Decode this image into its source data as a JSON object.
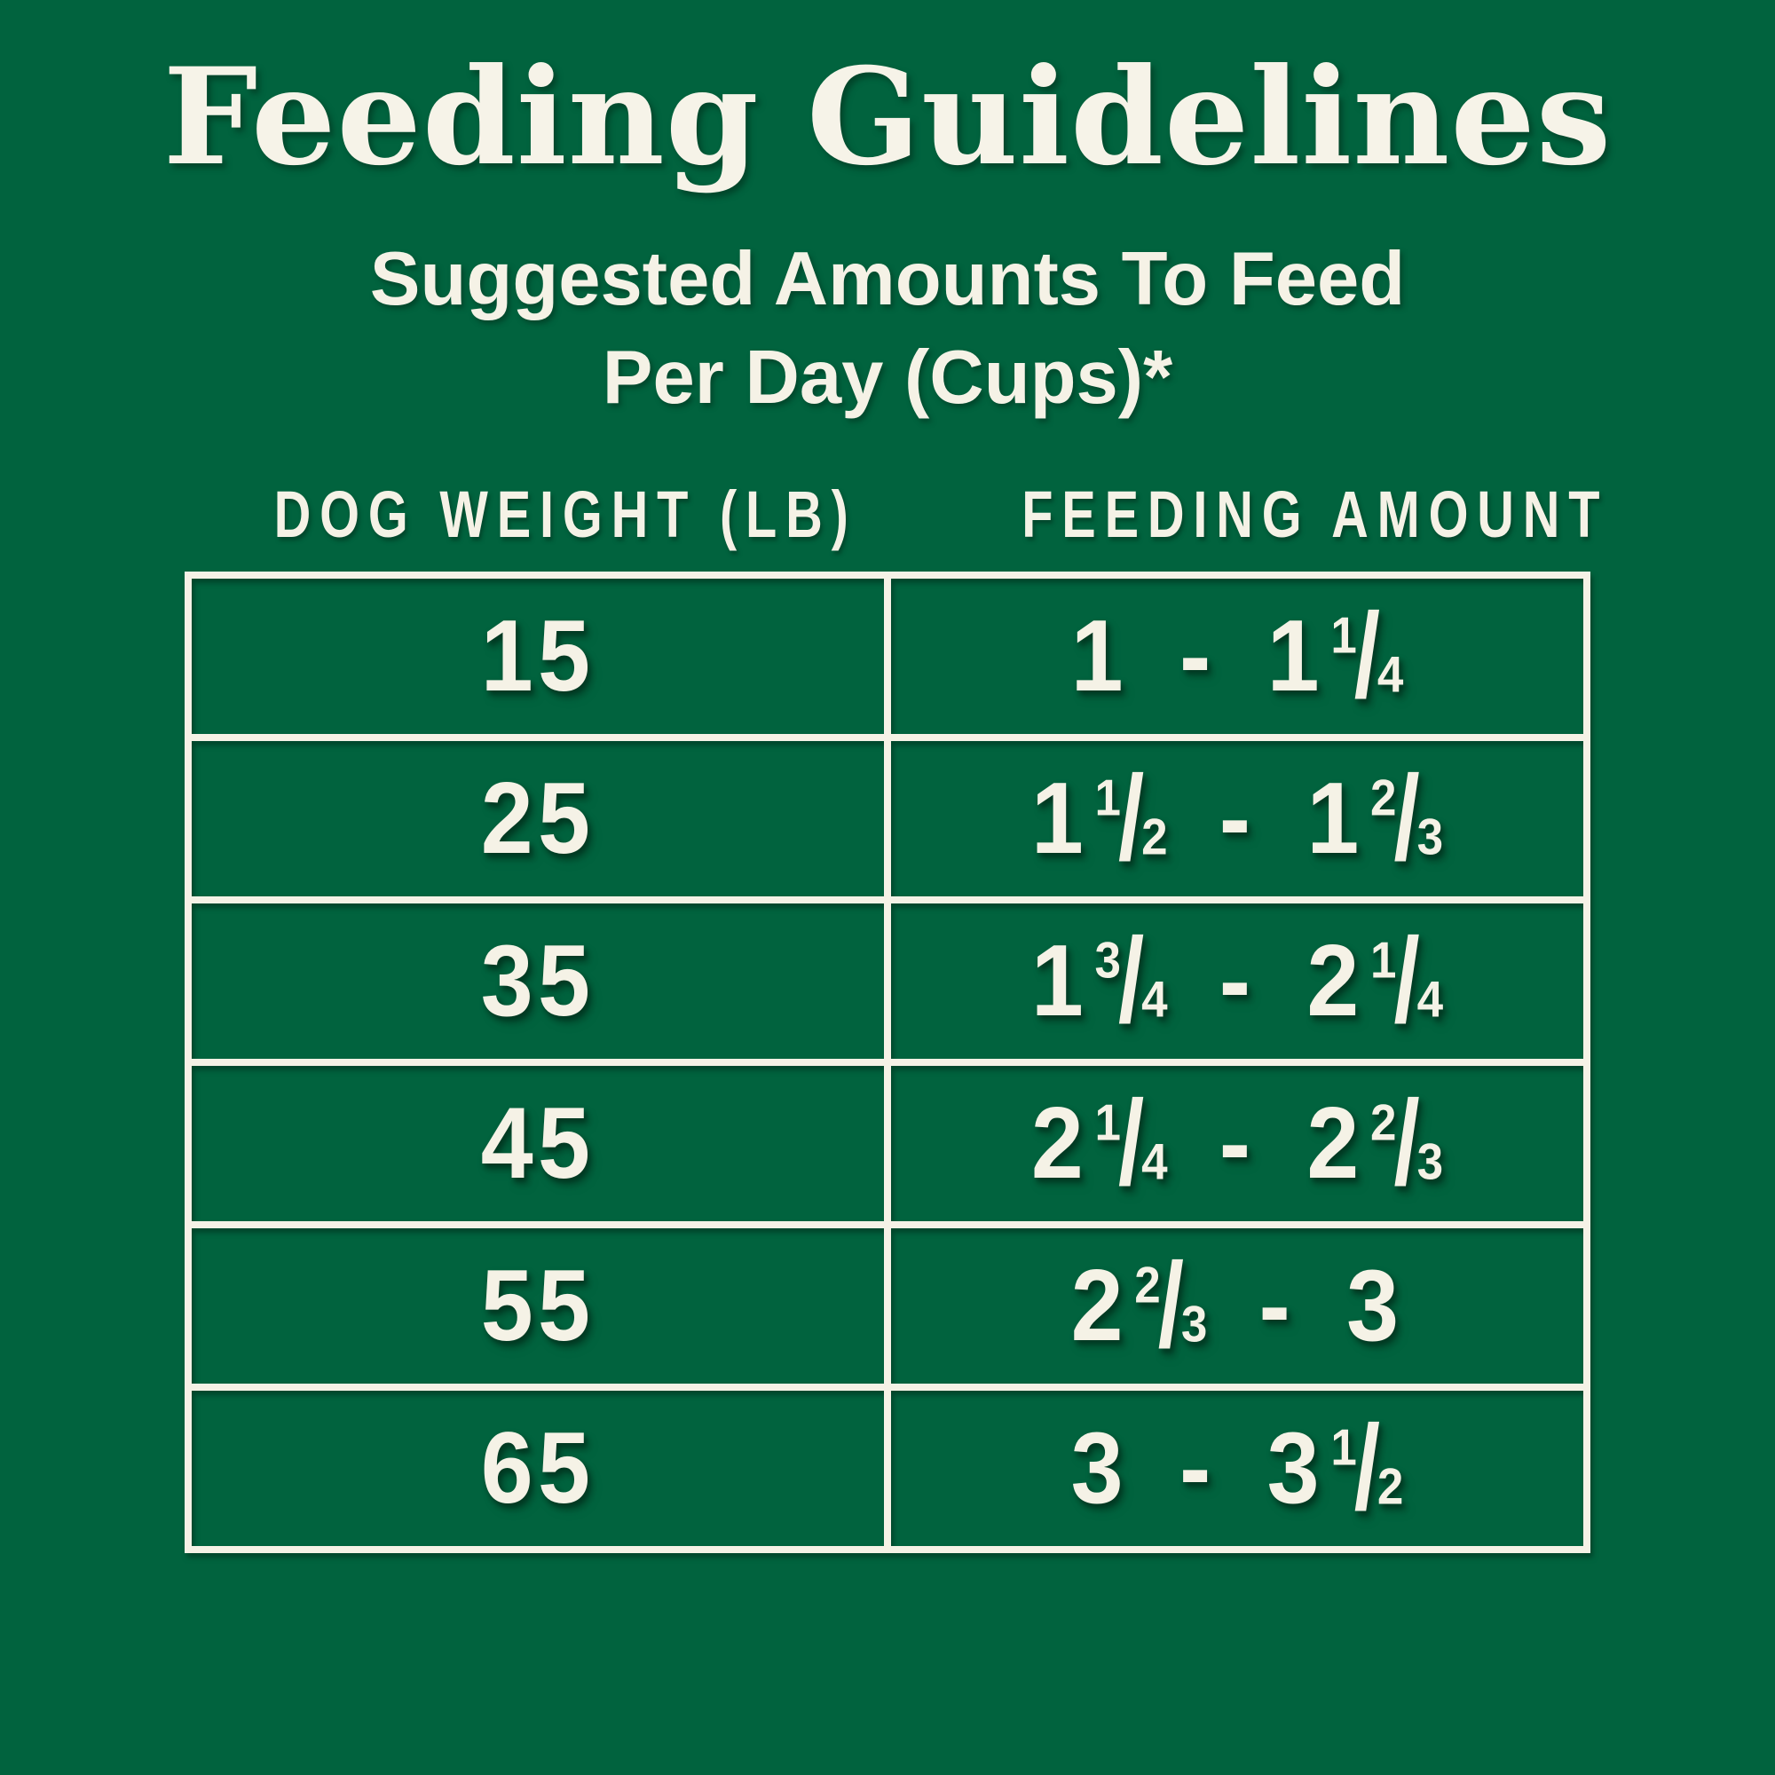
{
  "page": {
    "background_color": "#01633e",
    "text_color": "#f5f2e6"
  },
  "title": "Feeding Guidelines",
  "subtitle": {
    "line1": "Suggested Amounts To Feed",
    "line2": "Per Day (Cups)*"
  },
  "table": {
    "columns": [
      "DOG WEIGHT (LB)",
      "FEEDING AMOUNT"
    ],
    "rows": [
      {
        "weight": "15",
        "amount": "1 - 1¼"
      },
      {
        "weight": "25",
        "amount": "1½ - 1⅔"
      },
      {
        "weight": "35",
        "amount": "1¾ - 2¼"
      },
      {
        "weight": "45",
        "amount": "2¼ - 2⅔"
      },
      {
        "weight": "55",
        "amount": "2⅔ - 3"
      },
      {
        "weight": "65",
        "amount": "3 - 3½"
      }
    ]
  }
}
